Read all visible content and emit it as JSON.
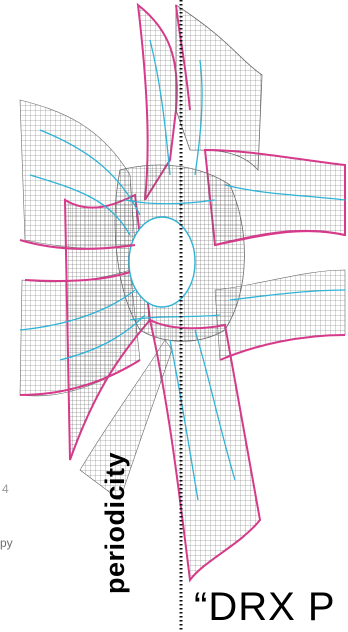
{
  "figure": {
    "axis_label": "periodicity",
    "caption": "“DRX P",
    "left_fragments": [
      "4",
      "py"
    ],
    "colors": {
      "grid": "#6a6a6a",
      "magenta_edge": "#d63a8a",
      "cyan_line": "#2fb3d6",
      "axis": "#111111"
    }
  }
}
